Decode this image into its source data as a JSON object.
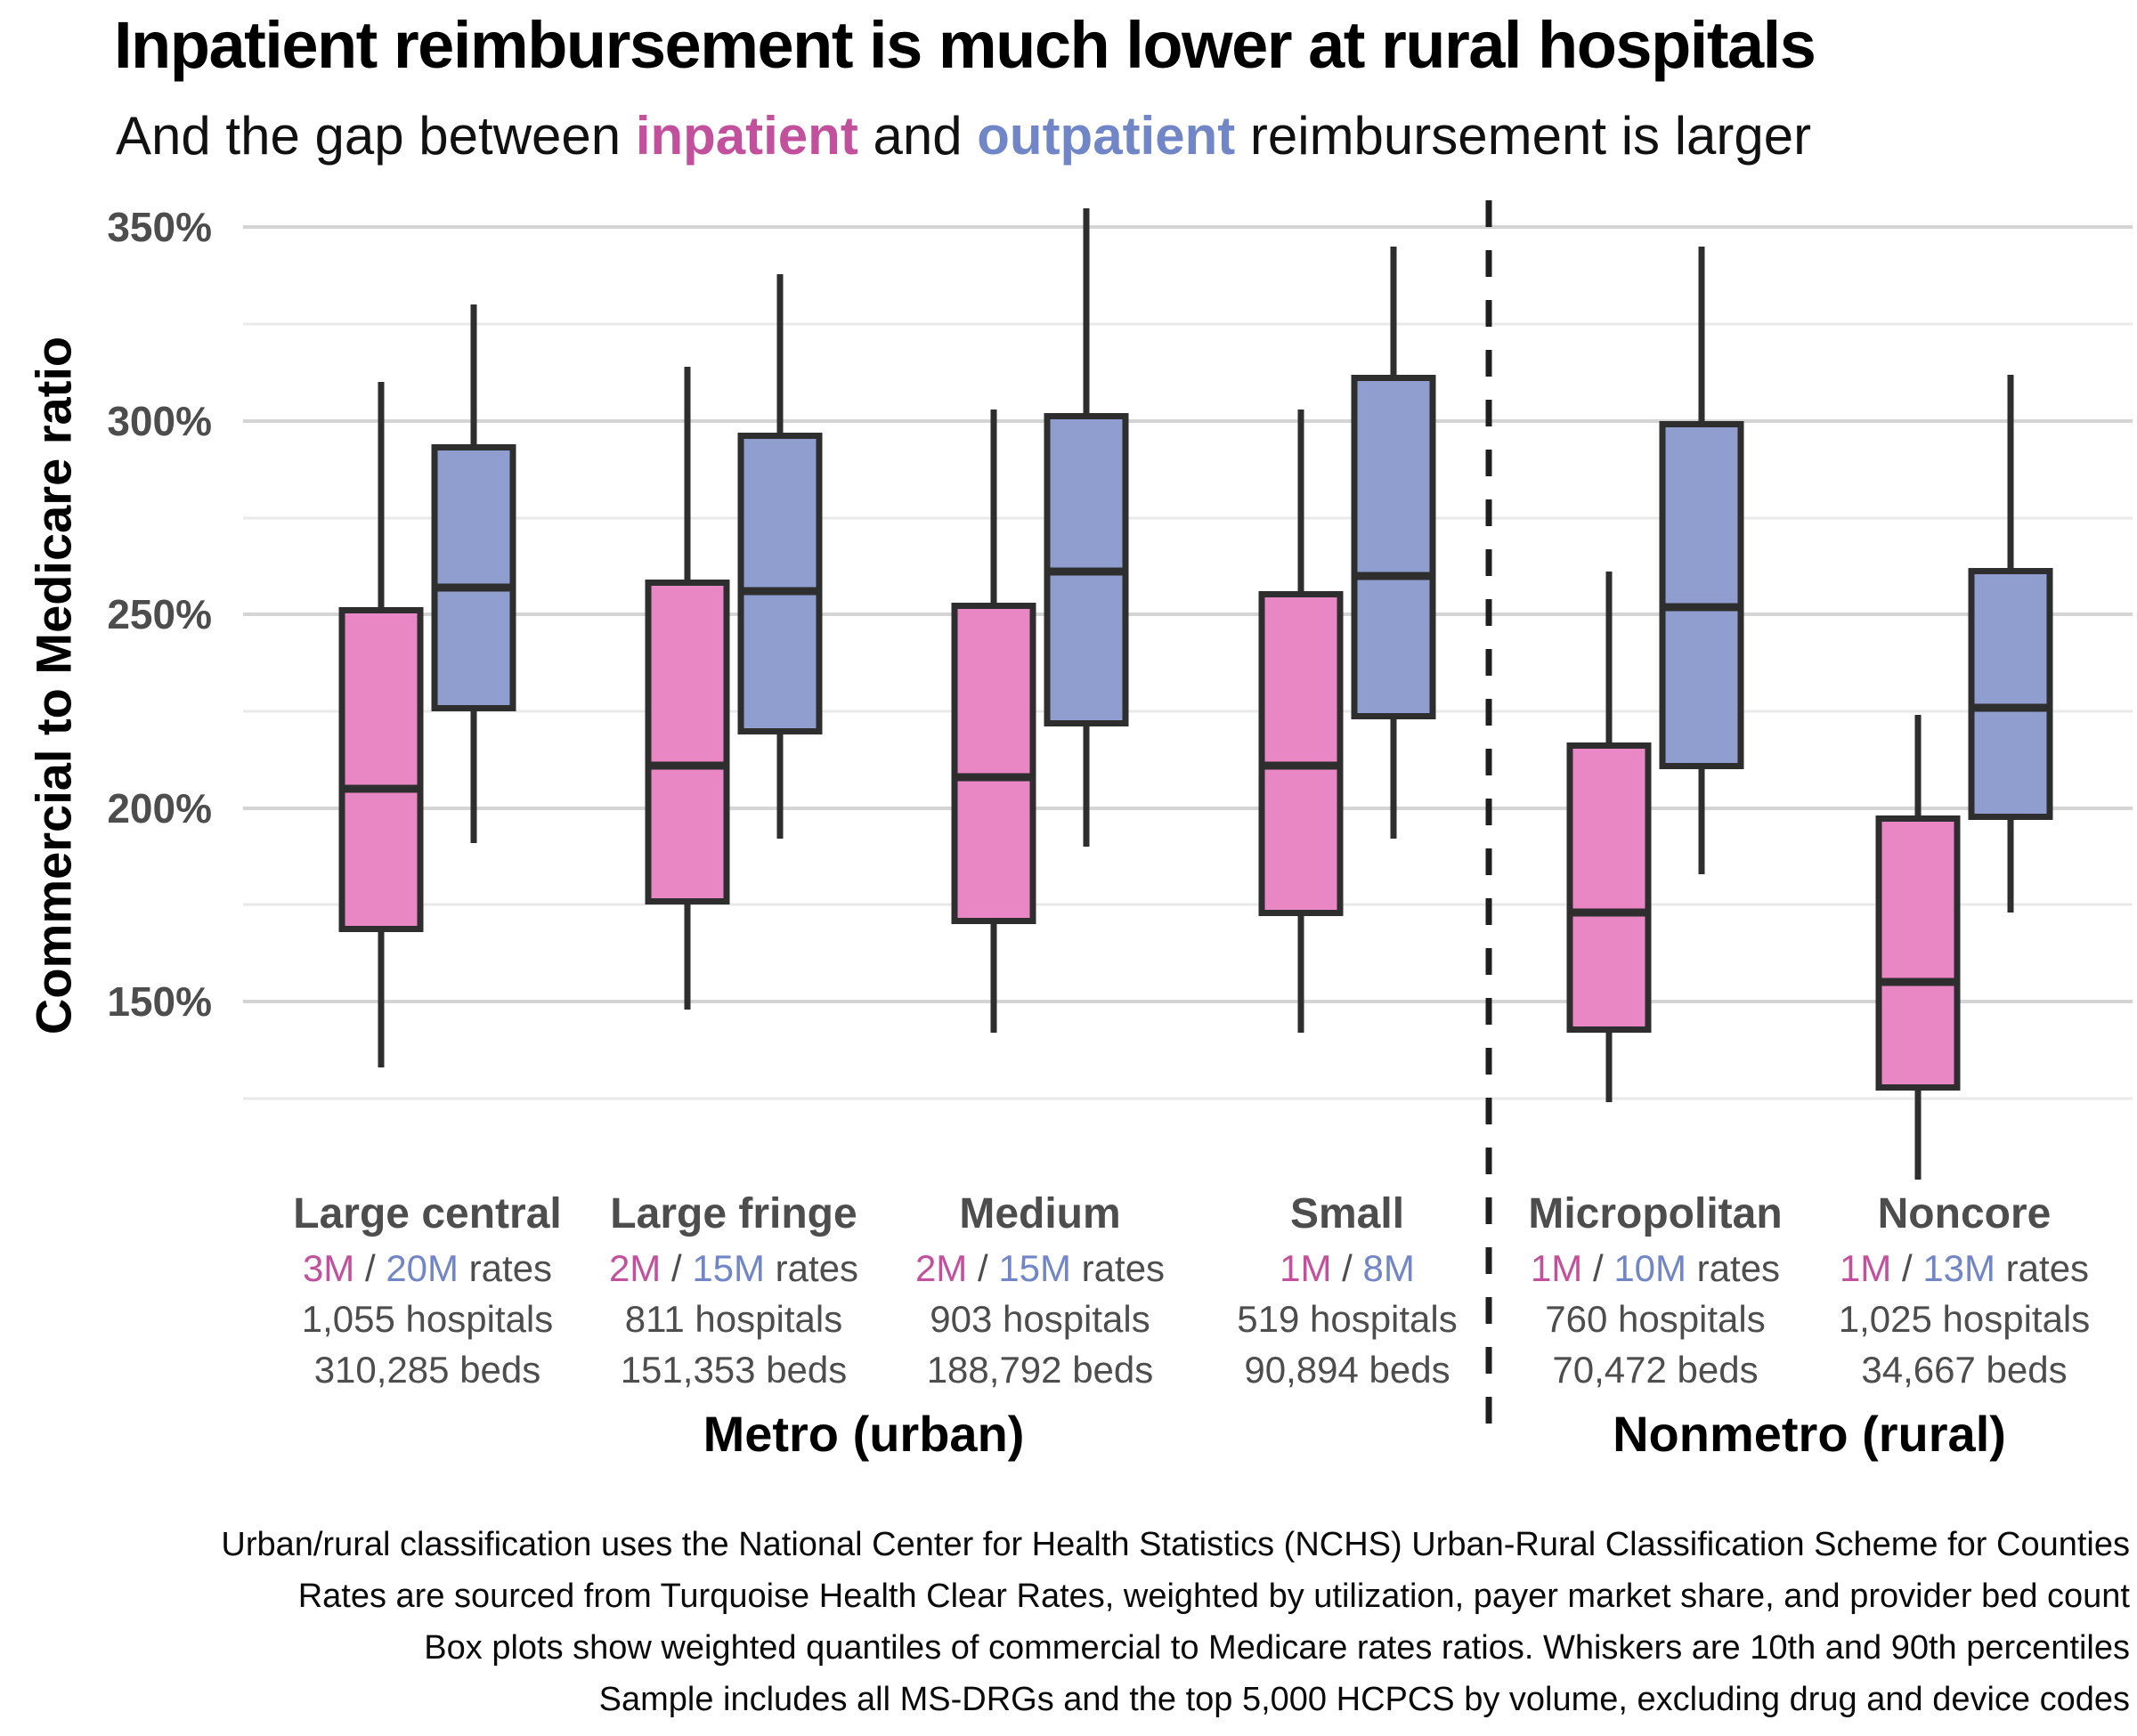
{
  "header": {
    "title": "Inpatient reimbursement is much lower at rural hospitals",
    "subtitle_prefix": "And the gap between ",
    "subtitle_inpatient": "inpatient",
    "subtitle_mid": " and ",
    "subtitle_outpatient": "outpatient",
    "subtitle_suffix": " reimbursement is larger"
  },
  "colors": {
    "inpatient_fill": "#e887c3",
    "outpatient_fill": "#8f9ecf",
    "inpatient_text": "#c2509c",
    "outpatient_text": "#7186c7",
    "box_border": "#2e2e2e",
    "major_grid": "#d4d4d4",
    "minor_grid": "#e9e9e9",
    "label_gray": "#4d4d4d"
  },
  "axis": {
    "y_title": "Commercial to Medicare ratio",
    "y_major": [
      {
        "value": 350,
        "label": "350%"
      },
      {
        "value": 300,
        "label": "300%"
      },
      {
        "value": 250,
        "label": "250%"
      },
      {
        "value": 200,
        "label": "200%"
      },
      {
        "value": 150,
        "label": "150%"
      }
    ],
    "y_minor": [
      325,
      275,
      225,
      175,
      125
    ]
  },
  "chart_data": {
    "type": "boxplot",
    "series_names": [
      "inpatient",
      "outpatient"
    ],
    "ylim": [
      104,
      357
    ],
    "grid": "horizontal",
    "groups": [
      {
        "name": "Large central",
        "region": "metro",
        "rates_inpatient": "3M",
        "rates_outpatient": "20M",
        "rates_suffix": " rates",
        "hospitals": "1,055 hospitals",
        "beds": "310,285 beds",
        "inpatient": {
          "low": 133,
          "q1": 168,
          "median": 205,
          "q3": 252,
          "high": 310
        },
        "outpatient": {
          "low": 191,
          "q1": 225,
          "median": 257,
          "q3": 294,
          "high": 330
        }
      },
      {
        "name": "Large fringe",
        "region": "metro",
        "rates_inpatient": "2M",
        "rates_outpatient": "15M",
        "rates_suffix": " rates",
        "hospitals": "811 hospitals",
        "beds": "151,353 beds",
        "inpatient": {
          "low": 148,
          "q1": 175,
          "median": 211,
          "q3": 259,
          "high": 314
        },
        "outpatient": {
          "low": 192,
          "q1": 219,
          "median": 256,
          "q3": 297,
          "high": 338
        }
      },
      {
        "name": "Medium",
        "region": "metro",
        "rates_inpatient": "2M",
        "rates_outpatient": "15M",
        "rates_suffix": " rates",
        "hospitals": "903 hospitals",
        "beds": "188,792 beds",
        "inpatient": {
          "low": 142,
          "q1": 170,
          "median": 208,
          "q3": 253,
          "high": 303
        },
        "outpatient": {
          "low": 190,
          "q1": 221,
          "median": 261,
          "q3": 302,
          "high": 355
        }
      },
      {
        "name": "Small",
        "region": "metro",
        "rates_inpatient": "1M",
        "rates_outpatient": "8M",
        "rates_suffix": "",
        "hospitals": "519 hospitals",
        "beds": "90,894 beds",
        "inpatient": {
          "low": 142,
          "q1": 172,
          "median": 211,
          "q3": 256,
          "high": 303
        },
        "outpatient": {
          "low": 192,
          "q1": 223,
          "median": 260,
          "q3": 312,
          "high": 345
        }
      },
      {
        "name": "Micropolitan",
        "region": "nonmetro",
        "rates_inpatient": "1M",
        "rates_outpatient": "10M",
        "rates_suffix": " rates",
        "hospitals": "760 hospitals",
        "beds": "70,472 beds",
        "inpatient": {
          "low": 124,
          "q1": 142,
          "median": 173,
          "q3": 217,
          "high": 261
        },
        "outpatient": {
          "low": 183,
          "q1": 210,
          "median": 252,
          "q3": 300,
          "high": 345
        }
      },
      {
        "name": "Noncore",
        "region": "nonmetro",
        "rates_inpatient": "1M",
        "rates_outpatient": "13M",
        "rates_suffix": " rates",
        "hospitals": "1,025 hospitals",
        "beds": "34,667 beds",
        "inpatient": {
          "low": 104,
          "q1": 127,
          "median": 155,
          "q3": 198,
          "high": 224
        },
        "outpatient": {
          "low": 173,
          "q1": 197,
          "median": 226,
          "q3": 262,
          "high": 312
        }
      }
    ]
  },
  "region_labels": [
    {
      "label": "Metro (urban)"
    },
    {
      "label": "Nonmetro (rural)"
    }
  ],
  "footnotes": [
    "Urban/rural classification uses the National Center for Health Statistics (NCHS) Urban-Rural Classification Scheme for Counties",
    "Rates are sourced from Turquoise Health Clear Rates, weighted by utilization, payer market share, and provider bed count",
    "Box plots show weighted quantiles of commercial to Medicare rates ratios. Whiskers are 10th and 90th percentiles",
    "Sample includes all MS-DRGs and the top 5,000 HCPCS by volume, excluding drug and device codes"
  ]
}
